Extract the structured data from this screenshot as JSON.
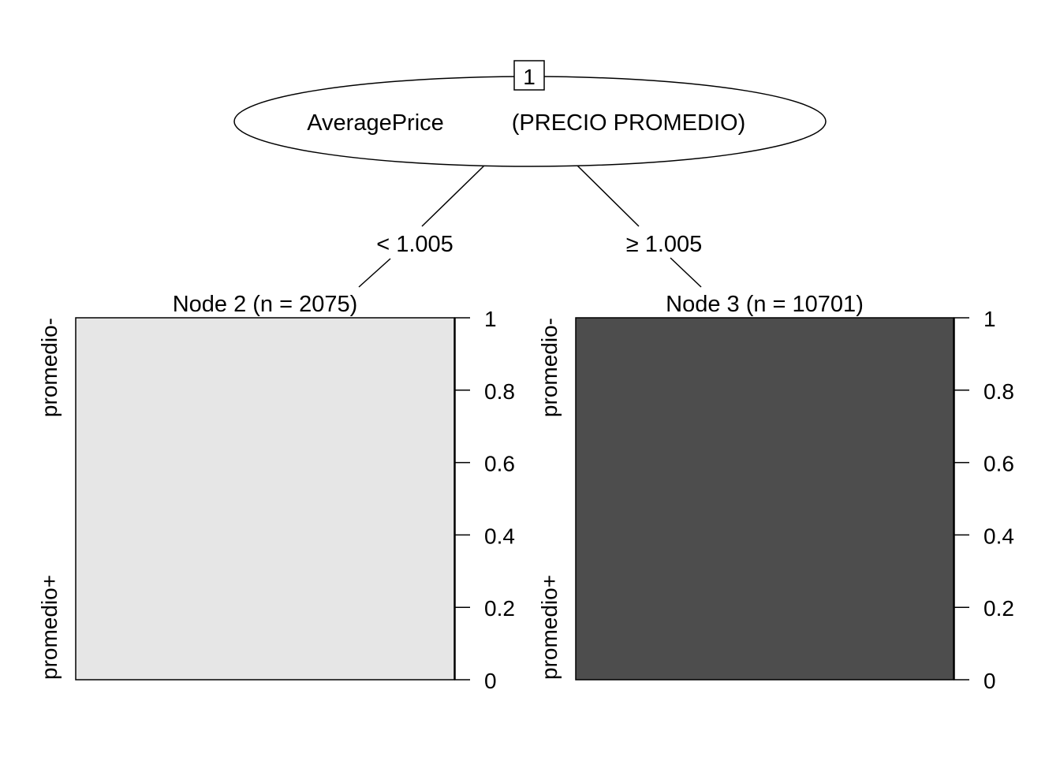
{
  "root": {
    "id_label": "1",
    "variable": "AveragePrice",
    "description": "(PRECIO PROMEDIO)"
  },
  "edges": [
    {
      "label": "< 1.005"
    },
    {
      "label": "≥ 1.005"
    }
  ],
  "terminal_nodes": [
    {
      "title": "Node 2 (n = 2075)",
      "proportions": {
        "promedio+": 0,
        "promedio-": 1
      }
    },
    {
      "title": "Node 3 (n = 10701)",
      "proportions": {
        "promedio+": 1,
        "promedio-": 0
      }
    }
  ],
  "class_labels": [
    "promedio+",
    "promedio-"
  ],
  "class_colors": {
    "promedio+": "#4d4d4d",
    "promedio-": "#e6e6e6"
  },
  "y_ticks": [
    "0",
    "0.2",
    "0.4",
    "0.6",
    "0.8",
    "1"
  ]
}
